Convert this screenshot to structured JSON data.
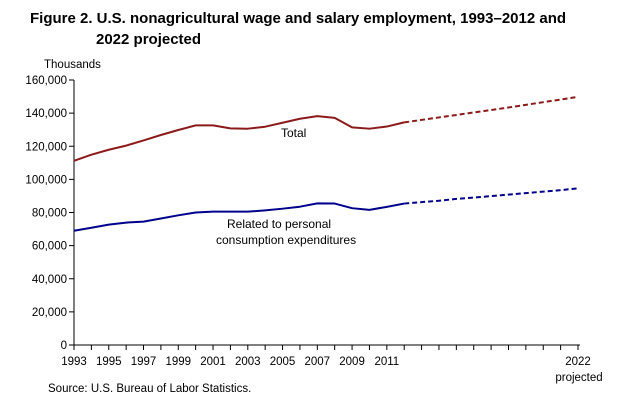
{
  "chart_data": {
    "type": "line",
    "title_line1": "Figure 2. U.S. nonagricultural  wage and salary employment, 1993–2012 and",
    "title_line2": "2022 projected",
    "ylabel": "Thousands",
    "source": "Source:  U.S. Bureau  of Labor Statistics.",
    "x_tick_labels": [
      "1993",
      "1995",
      "1997",
      "1999",
      "2001",
      "2003",
      "2005",
      "2007",
      "2009",
      "2011",
      "2022"
    ],
    "x_tick_sublabel": "projected",
    "y_tick_labels": [
      "0",
      "20,000",
      "40,000",
      "60,000",
      "80,000",
      "100,000",
      "120,000",
      "140,000",
      "160,000"
    ],
    "ylim": [
      0,
      160000
    ],
    "x_first_year": 1993,
    "x_last_year": 2022,
    "x_categories": [
      "1993",
      "1994",
      "1995",
      "1996",
      "1997",
      "1998",
      "1999",
      "2000",
      "2001",
      "2002",
      "2003",
      "2004",
      "2005",
      "2006",
      "2007",
      "2008",
      "2009",
      "2010",
      "2011",
      "2012",
      "2013",
      "2014",
      "2015",
      "2016",
      "2017",
      "2018",
      "2019",
      "2020",
      "2021",
      "2022"
    ],
    "projection_start_year": 2012,
    "series": [
      {
        "name": "Total",
        "color": "#8b1a1a",
        "x": [
          1993,
          1994,
          1995,
          1996,
          1997,
          1998,
          1999,
          2000,
          2001,
          2002,
          2003,
          2004,
          2005,
          2006,
          2007,
          2008,
          2009,
          2010,
          2011,
          2012,
          2013,
          2014,
          2015,
          2016,
          2017,
          2018,
          2019,
          2020,
          2021,
          2022
        ],
        "values": [
          111200,
          114900,
          117900,
          120400,
          123500,
          126800,
          129800,
          132600,
          132600,
          130800,
          130600,
          131800,
          134200,
          136600,
          138200,
          137100,
          131400,
          130600,
          131900,
          134400,
          135900,
          137400,
          138900,
          140400,
          141900,
          143400,
          145000,
          146600,
          148200,
          149800
        ]
      },
      {
        "name": "Related to personal consumption expenditures",
        "label_line1": "Related to personal",
        "label_line2": "consumption  expenditures",
        "color": "#00008b",
        "x": [
          1993,
          1994,
          1995,
          1996,
          1997,
          1998,
          1999,
          2000,
          2001,
          2002,
          2003,
          2004,
          2005,
          2006,
          2007,
          2008,
          2009,
          2010,
          2011,
          2012,
          2013,
          2014,
          2015,
          2016,
          2017,
          2018,
          2019,
          2020,
          2021,
          2022
        ],
        "values": [
          69000,
          70800,
          72700,
          73900,
          74500,
          76400,
          78300,
          80000,
          80500,
          80500,
          80500,
          81300,
          82300,
          83500,
          85500,
          85400,
          82600,
          81600,
          83400,
          85400,
          86300,
          87100,
          88200,
          89000,
          89900,
          90800,
          91700,
          92600,
          93500,
          94600
        ]
      }
    ],
    "grid": false,
    "legend": "inline labels"
  }
}
